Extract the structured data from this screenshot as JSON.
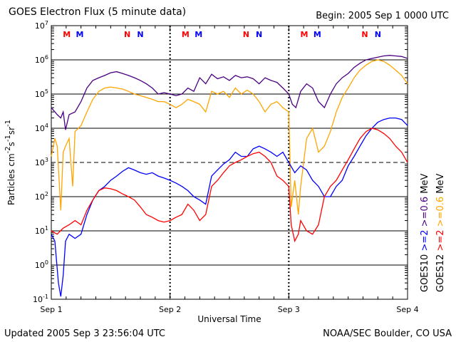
{
  "header": {
    "title": "GOES Electron Flux (5 minute data)",
    "begin": "Begin: 2005 Sep 1 0000 UTC"
  },
  "footer": {
    "updated": "Updated 2005 Sep  3 23:56:04 UTC",
    "source": "NOAA/SEC Boulder, CO USA"
  },
  "colors": {
    "goes10_low": "#4b0082",
    "goes10_high": "#0000ff",
    "goes12_low": "#ffa500",
    "goes12_high": "#ff0000",
    "marker_m": "#ff0000",
    "marker_n": "#0000ff"
  },
  "chart_data": {
    "type": "line",
    "title": "GOES Electron Flux (5 minute data)",
    "xlabel": "Universal Time",
    "ylabel": "Particles cm-2s-1sr-1",
    "y_scale": "log",
    "ylim": [
      0.1,
      10000000
    ],
    "xlim": [
      0,
      3
    ],
    "x_unit": "days since 2005 Sep 1 0000 UTC",
    "x_ticks": [
      {
        "value": 0,
        "label": "Sep 1"
      },
      {
        "value": 1,
        "label": "Sep 2"
      },
      {
        "value": 2,
        "label": "Sep 3"
      },
      {
        "value": 3,
        "label": "Sep 4"
      }
    ],
    "y_ticks": [
      {
        "exp": -1,
        "base": "10",
        "sup": "-1"
      },
      {
        "exp": 0,
        "base": "10",
        "sup": "0"
      },
      {
        "exp": 1,
        "base": "10",
        "sup": "1"
      },
      {
        "exp": 2,
        "base": "10",
        "sup": "2"
      },
      {
        "exp": 3,
        "base": "10",
        "sup": "3"
      },
      {
        "exp": 4,
        "base": "10",
        "sup": "4"
      },
      {
        "exp": 5,
        "base": "10",
        "sup": "5"
      },
      {
        "exp": 6,
        "base": "10",
        "sup": "6"
      },
      {
        "exp": 7,
        "base": "10",
        "sup": "7"
      }
    ],
    "threshold_line": 1000,
    "grid": "horizontal solid at decades, dashed at 10^3, dotted vertical at day boundaries",
    "legend": [
      {
        "label": ">=2 >=0.6 MeV",
        "prefix": "GOES10",
        "colors": [
          "#0000ff",
          "#4b0082"
        ]
      },
      {
        "label": ">=2 >=0.6 MeV",
        "prefix": "GOES12",
        "colors": [
          "#ff0000",
          "#ffa500"
        ]
      }
    ],
    "markers": [
      {
        "x": 0.13,
        "label": "M",
        "color": "#ff0000"
      },
      {
        "x": 0.24,
        "label": "M",
        "color": "#0000ff"
      },
      {
        "x": 0.64,
        "label": "N",
        "color": "#ff0000"
      },
      {
        "x": 0.75,
        "label": "N",
        "color": "#0000ff"
      },
      {
        "x": 1.13,
        "label": "M",
        "color": "#ff0000"
      },
      {
        "x": 1.24,
        "label": "M",
        "color": "#0000ff"
      },
      {
        "x": 1.64,
        "label": "N",
        "color": "#ff0000"
      },
      {
        "x": 1.75,
        "label": "N",
        "color": "#0000ff"
      },
      {
        "x": 2.13,
        "label": "M",
        "color": "#ff0000"
      },
      {
        "x": 2.24,
        "label": "M",
        "color": "#0000ff"
      },
      {
        "x": 2.64,
        "label": "N",
        "color": "#ff0000"
      },
      {
        "x": 2.75,
        "label": "N",
        "color": "#0000ff"
      }
    ],
    "series": [
      {
        "name": "GOES10 >=0.6 MeV",
        "color": "#4b0082",
        "x": [
          0,
          0.05,
          0.08,
          0.1,
          0.12,
          0.15,
          0.2,
          0.25,
          0.3,
          0.35,
          0.4,
          0.45,
          0.5,
          0.55,
          0.6,
          0.65,
          0.7,
          0.75,
          0.8,
          0.85,
          0.9,
          0.95,
          1.0,
          1.05,
          1.1,
          1.15,
          1.2,
          1.25,
          1.3,
          1.35,
          1.4,
          1.45,
          1.5,
          1.55,
          1.6,
          1.65,
          1.7,
          1.75,
          1.8,
          1.85,
          1.9,
          1.95,
          2.0,
          2.03,
          2.06,
          2.1,
          2.15,
          2.2,
          2.25,
          2.3,
          2.35,
          2.4,
          2.45,
          2.5,
          2.55,
          2.6,
          2.65,
          2.7,
          2.75,
          2.8,
          2.85,
          2.9,
          2.95,
          3.0
        ],
        "values": [
          40000,
          25000,
          20000,
          30000,
          9000,
          25000,
          30000,
          60000,
          150000,
          250000,
          300000,
          350000,
          420000,
          450000,
          400000,
          350000,
          300000,
          250000,
          200000,
          150000,
          100000,
          110000,
          100000,
          90000,
          100000,
          150000,
          120000,
          300000,
          200000,
          380000,
          280000,
          320000,
          250000,
          350000,
          300000,
          320000,
          280000,
          200000,
          300000,
          250000,
          220000,
          150000,
          100000,
          50000,
          40000,
          120000,
          200000,
          150000,
          60000,
          40000,
          100000,
          200000,
          300000,
          400000,
          600000,
          800000,
          1000000,
          1100000,
          1200000,
          1300000,
          1350000,
          1300000,
          1250000,
          1100000
        ]
      },
      {
        "name": "GOES12 >=0.6 MeV",
        "color": "#ffa500",
        "x": [
          0,
          0.03,
          0.05,
          0.08,
          0.1,
          0.12,
          0.15,
          0.18,
          0.2,
          0.25,
          0.3,
          0.35,
          0.4,
          0.45,
          0.5,
          0.55,
          0.6,
          0.65,
          0.7,
          0.75,
          0.8,
          0.85,
          0.9,
          0.95,
          1.0,
          1.05,
          1.1,
          1.15,
          1.2,
          1.25,
          1.3,
          1.35,
          1.4,
          1.45,
          1.5,
          1.55,
          1.6,
          1.65,
          1.7,
          1.75,
          1.8,
          1.85,
          1.9,
          1.95,
          2.0,
          2.02,
          2.05,
          2.08,
          2.1,
          2.15,
          2.2,
          2.25,
          2.3,
          2.35,
          2.4,
          2.45,
          2.5,
          2.55,
          2.6,
          2.65,
          2.7,
          2.75,
          2.8,
          2.85,
          2.9,
          2.95,
          3.0
        ],
        "values": [
          1500,
          5000,
          3000,
          40,
          2000,
          3000,
          5000,
          200,
          8000,
          12000,
          30000,
          70000,
          120000,
          150000,
          160000,
          150000,
          140000,
          120000,
          100000,
          90000,
          80000,
          70000,
          60000,
          60000,
          50000,
          40000,
          50000,
          70000,
          60000,
          50000,
          30000,
          120000,
          100000,
          120000,
          80000,
          150000,
          100000,
          130000,
          100000,
          60000,
          30000,
          50000,
          60000,
          40000,
          30000,
          50,
          300,
          30,
          200,
          5000,
          10000,
          2000,
          3000,
          8000,
          30000,
          80000,
          150000,
          300000,
          500000,
          700000,
          900000,
          1000000,
          900000,
          700000,
          500000,
          350000,
          200000
        ]
      },
      {
        "name": "GOES10 >=2 MeV",
        "color": "#0000ff",
        "x": [
          0,
          0.03,
          0.06,
          0.08,
          0.1,
          0.12,
          0.15,
          0.2,
          0.25,
          0.3,
          0.35,
          0.4,
          0.45,
          0.5,
          0.55,
          0.6,
          0.65,
          0.7,
          0.75,
          0.8,
          0.85,
          0.9,
          0.95,
          1.0,
          1.05,
          1.1,
          1.15,
          1.2,
          1.25,
          1.3,
          1.35,
          1.4,
          1.45,
          1.5,
          1.55,
          1.6,
          1.65,
          1.7,
          1.75,
          1.8,
          1.85,
          1.9,
          1.95,
          2.0,
          2.05,
          2.1,
          2.15,
          2.2,
          2.25,
          2.3,
          2.35,
          2.4,
          2.45,
          2.5,
          2.55,
          2.6,
          2.65,
          2.7,
          2.75,
          2.8,
          2.85,
          2.9,
          2.95,
          3.0
        ],
        "values": [
          8,
          5,
          0.3,
          0.12,
          0.5,
          5,
          8,
          6,
          8,
          30,
          80,
          150,
          200,
          300,
          400,
          550,
          700,
          600,
          500,
          450,
          500,
          400,
          350,
          300,
          250,
          200,
          150,
          100,
          80,
          60,
          400,
          600,
          900,
          1200,
          2000,
          1500,
          1500,
          2500,
          3000,
          2500,
          2000,
          1500,
          2000,
          1000,
          500,
          800,
          600,
          300,
          200,
          100,
          100,
          200,
          300,
          800,
          1500,
          3000,
          6000,
          10000,
          15000,
          18000,
          20000,
          20000,
          18000,
          12000
        ]
      },
      {
        "name": "GOES12 >=2 MeV",
        "color": "#ff0000",
        "x": [
          0,
          0.05,
          0.1,
          0.15,
          0.2,
          0.25,
          0.3,
          0.35,
          0.4,
          0.45,
          0.5,
          0.55,
          0.6,
          0.65,
          0.7,
          0.75,
          0.8,
          0.85,
          0.9,
          0.95,
          1.0,
          1.05,
          1.1,
          1.15,
          1.2,
          1.25,
          1.3,
          1.35,
          1.4,
          1.45,
          1.5,
          1.55,
          1.6,
          1.65,
          1.7,
          1.75,
          1.8,
          1.85,
          1.9,
          1.95,
          2.0,
          2.02,
          2.05,
          2.08,
          2.1,
          2.15,
          2.2,
          2.25,
          2.3,
          2.35,
          2.4,
          2.45,
          2.5,
          2.55,
          2.6,
          2.65,
          2.7,
          2.75,
          2.8,
          2.85,
          2.9,
          2.95,
          3.0
        ],
        "values": [
          10,
          8,
          12,
          15,
          20,
          15,
          40,
          80,
          150,
          180,
          170,
          150,
          120,
          100,
          80,
          50,
          30,
          25,
          20,
          18,
          20,
          25,
          30,
          60,
          40,
          20,
          30,
          200,
          300,
          500,
          800,
          1000,
          1200,
          1500,
          1800,
          2000,
          1500,
          1000,
          400,
          300,
          200,
          15,
          5,
          8,
          20,
          10,
          8,
          15,
          100,
          200,
          300,
          600,
          1200,
          2500,
          5000,
          8000,
          10000,
          9000,
          7000,
          5000,
          3000,
          2000,
          1000
        ]
      }
    ]
  }
}
